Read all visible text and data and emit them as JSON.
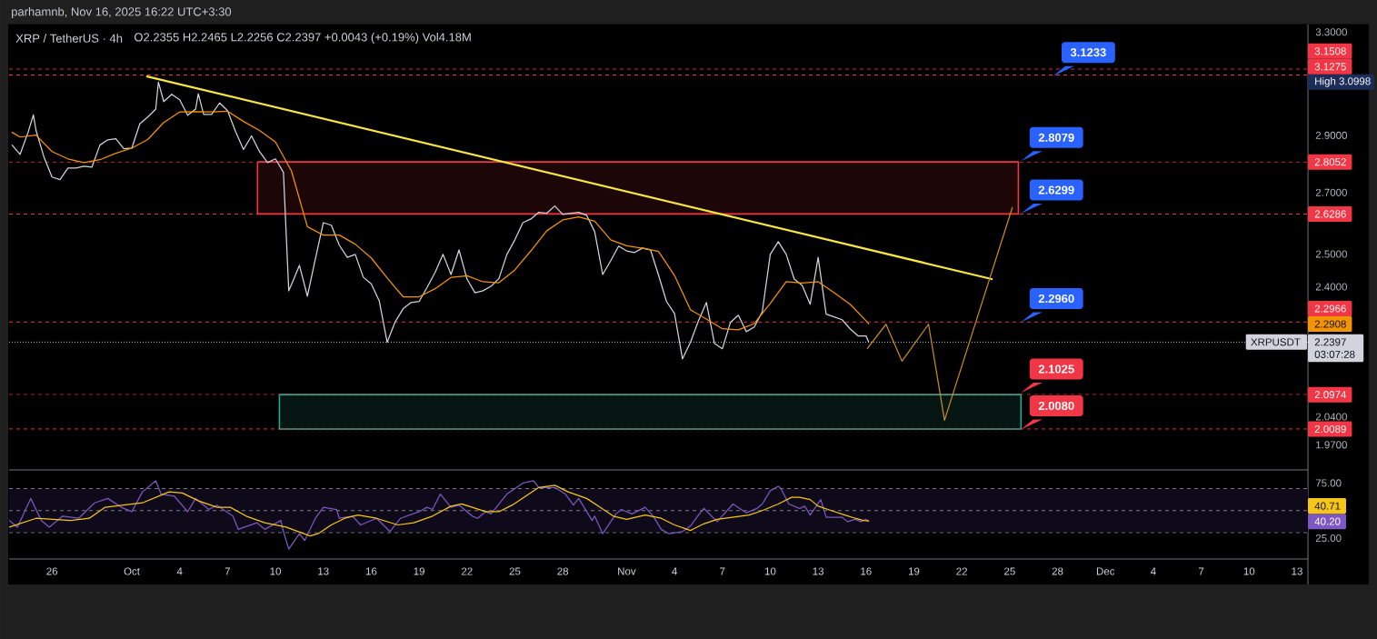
{
  "chart_data": [
    {
      "type": "line",
      "title": "XRP / TetherUS · 4h",
      "subtitle": "O2.2355 H2.2465 L2.2256 C2.2397 +0.0043 (+0.19%) Vol4.18M",
      "xlim": [
        "2025-09-23T07:30",
        "2025-12-13T16:30"
      ],
      "ylim": [
        1.909,
        3.331
      ],
      "log": true,
      "yticks": [
        {
          "value": 3.3,
          "label": "3.3000"
        },
        {
          "value": 3.0998,
          "label": "High 3.0998"
        },
        {
          "value": 2.9,
          "label": "2.9000"
        },
        {
          "value": 2.7,
          "label": "2.7000"
        },
        {
          "value": 2.5,
          "label": "2.5000"
        },
        {
          "value": 2.4,
          "label": "2.4000"
        },
        {
          "value": 2.2908,
          "label": "2.2908"
        },
        {
          "value": 2.04,
          "label": "2.0400"
        },
        {
          "value": 1.97,
          "label": "1.9700"
        }
      ],
      "tick_labels": "y",
      "series": [
        {
          "name": "XRPUSDT",
          "color": "#d1d4dc",
          "x": [
            "2025-09-23T12:00",
            "2025-09-24T00:00",
            "2025-09-24T12:00",
            "2025-09-24T20:00",
            "2025-09-25T00:00",
            "2025-09-25T12:00",
            "2025-09-26T00:00",
            "2025-09-26T12:00",
            "2025-09-27T00:00",
            "2025-09-27T12:00",
            "2025-09-28T00:00",
            "2025-09-28T12:00",
            "2025-09-29T00:00",
            "2025-09-29T12:00",
            "2025-09-30T00:00",
            "2025-09-30T12:00",
            "2025-10-01T00:00",
            "2025-10-01T12:00",
            "2025-10-02T00:00",
            "2025-10-02T12:00",
            "2025-10-02T16:00",
            "2025-10-03T00:00",
            "2025-10-03T12:00",
            "2025-10-04T00:00",
            "2025-10-04T12:00",
            "2025-10-05T00:00",
            "2025-10-05T04:00",
            "2025-10-05T12:00",
            "2025-10-06T00:00",
            "2025-10-06T12:00",
            "2025-10-07T00:00",
            "2025-10-07T12:00",
            "2025-10-08T00:00",
            "2025-10-08T12:00",
            "2025-10-09T00:00",
            "2025-10-09T12:00",
            "2025-10-10T00:00",
            "2025-10-10T12:00",
            "2025-10-10T20:00",
            "2025-10-11T00:00",
            "2025-10-11T12:00",
            "2025-10-12T00:00",
            "2025-10-12T12:00",
            "2025-10-13T00:00",
            "2025-10-13T12:00",
            "2025-10-14T00:00",
            "2025-10-14T12:00",
            "2025-10-15T00:00",
            "2025-10-15T12:00",
            "2025-10-16T00:00",
            "2025-10-16T12:00",
            "2025-10-17T00:00",
            "2025-10-17T12:00",
            "2025-10-18T00:00",
            "2025-10-18T12:00",
            "2025-10-19T00:00",
            "2025-10-19T12:00",
            "2025-10-20T00:00",
            "2025-10-20T12:00",
            "2025-10-21T00:00",
            "2025-10-21T12:00",
            "2025-10-22T00:00",
            "2025-10-22T12:00",
            "2025-10-23T00:00",
            "2025-10-23T12:00",
            "2025-10-24T00:00",
            "2025-10-24T12:00",
            "2025-10-25T00:00",
            "2025-10-25T12:00",
            "2025-10-26T00:00",
            "2025-10-26T12:00",
            "2025-10-27T00:00",
            "2025-10-27T12:00",
            "2025-10-28T00:00",
            "2025-10-28T12:00",
            "2025-10-29T00:00",
            "2025-10-29T12:00",
            "2025-10-30T00:00",
            "2025-10-30T12:00",
            "2025-10-31T00:00",
            "2025-10-31T12:00",
            "2025-11-01T00:00",
            "2025-11-01T12:00",
            "2025-11-02T00:00",
            "2025-11-02T12:00",
            "2025-11-03T00:00",
            "2025-11-03T12:00",
            "2025-11-04T00:00",
            "2025-11-04T12:00",
            "2025-11-05T00:00",
            "2025-11-05T12:00",
            "2025-11-06T00:00",
            "2025-11-06T12:00",
            "2025-11-07T00:00",
            "2025-11-07T12:00",
            "2025-11-08T00:00",
            "2025-11-08T12:00",
            "2025-11-09T00:00",
            "2025-11-09T12:00",
            "2025-11-10T00:00",
            "2025-11-10T12:00",
            "2025-11-11T00:00",
            "2025-11-11T12:00",
            "2025-11-12T00:00",
            "2025-11-12T12:00",
            "2025-11-13T00:00",
            "2025-11-13T12:00",
            "2025-11-14T00:00",
            "2025-11-14T12:00",
            "2025-11-15T00:00",
            "2025-11-15T12:00",
            "2025-11-16T00:00",
            "2025-11-16T04:00"
          ],
          "values": [
            2.865,
            2.832,
            2.911,
            2.975,
            2.918,
            2.822,
            2.753,
            2.744,
            2.784,
            2.784,
            2.79,
            2.787,
            2.865,
            2.884,
            2.888,
            2.852,
            2.854,
            2.942,
            2.967,
            2.997,
            3.0998,
            3.025,
            3.053,
            3.032,
            2.974,
            2.997,
            3.055,
            2.977,
            2.977,
            3.02,
            2.991,
            2.914,
            2.849,
            2.898,
            2.842,
            2.803,
            2.816,
            2.769,
            2.388,
            2.406,
            2.465,
            2.372,
            2.485,
            2.6,
            2.592,
            2.528,
            2.49,
            2.499,
            2.429,
            2.409,
            2.358,
            2.239,
            2.297,
            2.335,
            2.353,
            2.356,
            2.398,
            2.443,
            2.499,
            2.437,
            2.513,
            2.423,
            2.382,
            2.388,
            2.401,
            2.425,
            2.499,
            2.545,
            2.6,
            2.612,
            2.634,
            2.631,
            2.655,
            2.627,
            2.631,
            2.634,
            2.624,
            2.571,
            2.437,
            2.479,
            2.525,
            2.51,
            2.505,
            2.519,
            2.513,
            2.435,
            2.356,
            2.321,
            2.193,
            2.239,
            2.3,
            2.353,
            2.236,
            2.221,
            2.295,
            2.316,
            2.269,
            2.282,
            2.326,
            2.499,
            2.539,
            2.499,
            2.423,
            2.404,
            2.348,
            2.49,
            2.319,
            2.311,
            2.303,
            2.277,
            2.257,
            2.257,
            2.2397
          ]
        },
        {
          "color": "#f59300",
          "x": [
            "2025-09-23T12:00",
            "2025-09-24",
            "2025-09-25",
            "2025-09-26",
            "2025-09-27",
            "2025-09-28",
            "2025-09-29",
            "2025-09-30",
            "2025-10-01",
            "2025-10-02",
            "2025-10-03",
            "2025-10-04",
            "2025-10-05",
            "2025-10-06",
            "2025-10-07",
            "2025-10-08",
            "2025-10-09",
            "2025-10-10",
            "2025-10-11",
            "2025-10-12",
            "2025-10-13",
            "2025-10-14",
            "2025-10-15",
            "2025-10-16",
            "2025-10-17",
            "2025-10-18",
            "2025-10-19",
            "2025-10-20",
            "2025-10-21",
            "2025-10-22",
            "2025-10-23",
            "2025-10-24",
            "2025-10-25",
            "2025-10-26",
            "2025-10-27",
            "2025-10-28",
            "2025-10-29",
            "2025-10-30",
            "2025-10-31",
            "2025-11-01",
            "2025-11-02",
            "2025-11-03",
            "2025-11-04",
            "2025-11-05",
            "2025-11-06",
            "2025-11-07",
            "2025-11-08",
            "2025-11-09",
            "2025-11-10",
            "2025-11-11",
            "2025-11-12",
            "2025-11-13",
            "2025-11-14",
            "2025-11-15",
            "2025-11-16",
            "2025-11-16T04:00"
          ],
          "values": [
            2.911,
            2.894,
            2.901,
            2.842,
            2.816,
            2.803,
            2.813,
            2.836,
            2.854,
            2.885,
            2.947,
            2.986,
            2.987,
            2.986,
            2.989,
            2.951,
            2.918,
            2.876,
            2.774,
            2.587,
            2.56,
            2.56,
            2.531,
            2.488,
            2.426,
            2.37,
            2.37,
            2.394,
            2.428,
            2.433,
            2.415,
            2.412,
            2.451,
            2.51,
            2.574,
            2.609,
            2.619,
            2.605,
            2.545,
            2.526,
            2.518,
            2.508,
            2.434,
            2.332,
            2.305,
            2.277,
            2.274,
            2.292,
            2.35,
            2.415,
            2.411,
            2.415,
            2.382,
            2.348,
            2.3,
            2.2908
          ]
        },
        {
          "color": "#f5e642",
          "x": [
            "2025-10-01T23:00",
            "2025-11-23T21:00"
          ],
          "values": [
            3.122,
            2.423
          ]
        },
        {
          "color": "#c98a1e",
          "x": [
            "2025-11-16T02:00",
            "2025-11-17T06:00",
            "2025-11-18T06:00",
            "2025-11-19T22:00",
            "2025-11-20T22:00",
            "2025-11-25T04:00"
          ],
          "values": [
            2.222,
            2.29,
            2.187,
            2.29,
            2.031,
            2.65
          ]
        },
        {
          "color": "#f23645",
          "x": [
            "2025-10-08T21:00",
            "2025-11-25T13:00"
          ],
          "values": [
            null,
            null
          ],
          "lower": [
            2.6286,
            2.6286
          ],
          "upper": [
            2.8052,
            2.8052
          ]
        },
        {
          "color": "#22ab94",
          "x": [
            "2025-10-10T06:00",
            "2025-11-25T17:00"
          ],
          "values": [
            null,
            null
          ],
          "lower": [
            2.0089,
            2.0089
          ],
          "upper": [
            2.0974,
            2.0974
          ]
        }
      ],
      "ref_lines": [
        {
          "axis": "y",
          "value": 3.1508,
          "label": "3.1508",
          "color": "#f23645",
          "line_style": "dashed"
        },
        {
          "axis": "y",
          "value": 3.1275,
          "label": "3.1275",
          "color": "#f23645",
          "line_style": "dashed"
        },
        {
          "axis": "y",
          "value": 2.8052,
          "label": "2.8052",
          "color": "#f23645",
          "line_style": "dashed"
        },
        {
          "axis": "y",
          "value": 2.6286,
          "label": "2.6286",
          "color": "#f23645",
          "line_style": "dashed"
        },
        {
          "axis": "y",
          "value": 2.2966,
          "label": "2.2966",
          "color": "#f23645",
          "line_style": "dashed"
        },
        {
          "axis": "y",
          "value": 2.0974,
          "label": "2.0974",
          "color": "#f23645",
          "line_style": "dashed"
        },
        {
          "axis": "y",
          "value": 2.0089,
          "label": "2.0089",
          "color": "#f23645",
          "line_style": "dashed"
        },
        {
          "axis": "y",
          "value": 2.2397,
          "label": "2.2397",
          "color": "#d1d4dc",
          "line_style": "dotted"
        }
      ],
      "annotations": [
        "parhamnb, Nov 16, 2025 16:22 UTC+3:30",
        "03:07:28",
        {
          "text": "3.1233",
          "x": "2025-11-27T17:00",
          "y": 3.1233
        },
        {
          "text": "2.8079",
          "x": "2025-11-25T17:00",
          "y": 2.8079
        },
        {
          "text": "2.6299",
          "x": "2025-11-25T17:00",
          "y": 2.6299
        },
        {
          "text": "2.2960",
          "x": "2025-11-25T17:00",
          "y": 2.296
        },
        {
          "text": "2.1025",
          "x": "2025-11-25T17:00",
          "y": 2.1025
        },
        {
          "text": "2.0080",
          "x": "2025-11-25T17:00",
          "y": 2.008
        }
      ]
    },
    {
      "type": "line",
      "xlim": [
        "2025-09-23T07:30",
        "2025-12-13T16:30"
      ],
      "ylim": [
        6.1,
        86.9
      ],
      "xticks": [
        {
          "value": "2025-09-26",
          "label": "26"
        },
        {
          "value": "2025-10-01",
          "label": "Oct"
        },
        {
          "value": "2025-10-04",
          "label": "4"
        },
        {
          "value": "2025-10-07",
          "label": "7"
        },
        {
          "value": "2025-10-10",
          "label": "10"
        },
        {
          "value": "2025-10-13",
          "label": "13"
        },
        {
          "value": "2025-10-16",
          "label": "16"
        },
        {
          "value": "2025-10-19",
          "label": "19"
        },
        {
          "value": "2025-10-22",
          "label": "22"
        },
        {
          "value": "2025-10-25",
          "label": "25"
        },
        {
          "value": "2025-10-28",
          "label": "28"
        },
        {
          "value": "2025-11-01",
          "label": "Nov"
        },
        {
          "value": "2025-11-04",
          "label": "4"
        },
        {
          "value": "2025-11-07",
          "label": "7"
        },
        {
          "value": "2025-11-10",
          "label": "10"
        },
        {
          "value": "2025-11-13",
          "label": "13"
        },
        {
          "value": "2025-11-16",
          "label": "16"
        },
        {
          "value": "2025-11-19",
          "label": "19"
        },
        {
          "value": "2025-11-22",
          "label": "22"
        },
        {
          "value": "2025-11-25",
          "label": "25"
        },
        {
          "value": "2025-11-28",
          "label": "28"
        },
        {
          "value": "2025-12-01",
          "label": "Dec"
        },
        {
          "value": "2025-12-04",
          "label": "4"
        },
        {
          "value": "2025-12-07",
          "label": "7"
        },
        {
          "value": "2025-12-10",
          "label": "10"
        },
        {
          "value": "2025-12-13",
          "label": "13"
        }
      ],
      "yticks": [
        {
          "value": 75,
          "label": "75.00"
        },
        {
          "value": 40.2,
          "label": "40.20"
        },
        {
          "value": 25,
          "label": "25.00"
        }
      ],
      "series": [
        {
          "color": "#7e57c2",
          "x": [
            "2025-09-23T08:00",
            "2025-09-23T20:00",
            "2025-09-24T16:00",
            "2025-09-25T08:00",
            "2025-09-25T20:00",
            "2025-09-26T16:00",
            "2025-09-27T16:00",
            "2025-09-28T16:00",
            "2025-09-29T12:00",
            "2025-09-30T08:00",
            "2025-10-01T00:00",
            "2025-10-01T16:00",
            "2025-10-02T12:00",
            "2025-10-02T20:00",
            "2025-10-03T16:00",
            "2025-10-04T12:00",
            "2025-10-05T00:00",
            "2025-10-05T20:00",
            "2025-10-06T08:00",
            "2025-10-07T08:00",
            "2025-10-07T16:00",
            "2025-10-08T20:00",
            "2025-10-09T08:00",
            "2025-10-10T08:00",
            "2025-10-10T12:00",
            "2025-10-10T20:00",
            "2025-10-11T12:00",
            "2025-10-11T20:00",
            "2025-10-12T12:00",
            "2025-10-13T00:00",
            "2025-10-13T20:00",
            "2025-10-14T00:00",
            "2025-10-14T20:00",
            "2025-10-15T08:00",
            "2025-10-16T08:00",
            "2025-10-17T04:00",
            "2025-10-17T20:00",
            "2025-10-19T00:00",
            "2025-10-19T12:00",
            "2025-10-19T20:00",
            "2025-10-20T08:00",
            "2025-10-21T00:00",
            "2025-10-21T12:00",
            "2025-10-22T08:00",
            "2025-10-22T16:00",
            "2025-10-23T04:00",
            "2025-10-23T12:00",
            "2025-10-24T12:00",
            "2025-10-25T12:00",
            "2025-10-26T04:00",
            "2025-10-26T12:00",
            "2025-10-27T12:00",
            "2025-10-28T04:00",
            "2025-10-28T16:00",
            "2025-10-29T00:00",
            "2025-10-29T20:00",
            "2025-10-30T00:00",
            "2025-10-30T12:00",
            "2025-10-31T08:00",
            "2025-10-31T16:00",
            "2025-11-01T08:00",
            "2025-11-02T04:00",
            "2025-11-02T16:00",
            "2025-11-03T04:00",
            "2025-11-03T16:00",
            "2025-11-04T12:00",
            "2025-11-05T00:00",
            "2025-11-05T12:00",
            "2025-11-05T20:00",
            "2025-11-06T16:00",
            "2025-11-07T16:00",
            "2025-11-08T12:00",
            "2025-11-09T04:00",
            "2025-11-09T12:00",
            "2025-11-10T00:00",
            "2025-11-10T12:00",
            "2025-11-10T16:00",
            "2025-11-11T04:00",
            "2025-11-11T20:00",
            "2025-11-12T04:00",
            "2025-11-12T12:00",
            "2025-11-13T04:00",
            "2025-11-13T12:00",
            "2025-11-14T12:00",
            "2025-11-14T20:00",
            "2025-11-15T08:00",
            "2025-11-15T16:00",
            "2025-11-16T00:00",
            "2025-11-16T04:00"
          ],
          "values": [
            41,
            35,
            61,
            41,
            35,
            45,
            43,
            57,
            61,
            53,
            49,
            67,
            77,
            65,
            63,
            49,
            61,
            51,
            55,
            45,
            33,
            39,
            33,
            41,
            31,
            15,
            29,
            23,
            43,
            53,
            51,
            43,
            45,
            37,
            43,
            31,
            43,
            49,
            53,
            51,
            65,
            53,
            55,
            45,
            43,
            49,
            47,
            65,
            75,
            77,
            71,
            71,
            65,
            55,
            61,
            41,
            45,
            29,
            47,
            51,
            47,
            53,
            45,
            33,
            29,
            31,
            36,
            46,
            52,
            40,
            56,
            48,
            52,
            56,
            68,
            72,
            70,
            56,
            52,
            54,
            46,
            60,
            44,
            44,
            40,
            42,
            40,
            42,
            40.2
          ]
        },
        {
          "color": "#f5c518",
          "x": [
            "2025-09-23T08:00",
            "2025-09-25T00:00",
            "2025-09-27T04:00",
            "2025-09-28T08:00",
            "2025-09-29T08:00",
            "2025-10-01T16:00",
            "2025-10-03T08:00",
            "2025-10-04T04:00",
            "2025-10-05T04:00",
            "2025-10-06T08:00",
            "2025-10-07T04:00",
            "2025-10-08T04:00",
            "2025-10-09T08:00",
            "2025-10-10T16:00",
            "2025-10-12T04:00",
            "2025-10-12T16:00",
            "2025-10-13T12:00",
            "2025-10-14T08:00",
            "2025-10-15T04:00",
            "2025-10-16T08:00",
            "2025-10-17T16:00",
            "2025-10-18T16:00",
            "2025-10-19T20:00",
            "2025-10-21T00:00",
            "2025-10-21T16:00",
            "2025-10-22T08:00",
            "2025-10-23T04:00",
            "2025-10-24T00:00",
            "2025-10-24T20:00",
            "2025-10-25T16:00",
            "2025-10-26T12:00",
            "2025-10-27T12:00",
            "2025-10-28T08:00",
            "2025-10-29T12:00",
            "2025-10-30T08:00",
            "2025-10-31T04:00",
            "2025-11-01T00:00",
            "2025-11-02T04:00",
            "2025-11-03T04:00",
            "2025-11-04T00:00",
            "2025-11-05T00:00",
            "2025-11-05T20:00",
            "2025-11-06T16:00",
            "2025-11-07T16:00",
            "2025-11-08T16:00",
            "2025-11-09T12:00",
            "2025-11-10T12:00",
            "2025-11-11T08:00",
            "2025-11-11T20:00",
            "2025-11-12T12:00",
            "2025-11-13T00:00",
            "2025-11-13T20:00",
            "2025-11-14T16:00",
            "2025-11-15T08:00",
            "2025-11-15T20:00",
            "2025-11-16T04:00"
          ],
          "values": [
            35,
            43,
            41,
            43,
            53,
            57,
            67,
            66,
            59,
            53,
            53,
            45,
            39,
            35,
            27,
            29,
            37,
            43,
            46,
            43,
            37,
            39,
            45,
            54,
            56,
            53,
            49,
            49,
            55,
            63,
            71,
            73,
            67,
            61,
            53,
            45,
            42,
            46,
            43,
            37,
            32,
            38,
            42,
            44,
            46,
            50,
            56,
            62,
            62,
            60,
            54,
            50,
            46,
            43,
            41,
            40.71
          ]
        }
      ],
      "ref_lines": [
        {
          "axis": "y",
          "value": 70,
          "color": "#787b86",
          "line_style": "dashed"
        },
        {
          "axis": "y",
          "value": 50,
          "color": "#787b86",
          "line_style": "dashed"
        },
        {
          "axis": "y",
          "value": 30,
          "color": "#787b86",
          "line_style": "dashed"
        }
      ],
      "bands": [
        {
          "axis": "y",
          "from": 30,
          "to": 70,
          "color": "#0e0a19"
        }
      ],
      "annotations": [
        "40.71"
      ]
    }
  ]
}
